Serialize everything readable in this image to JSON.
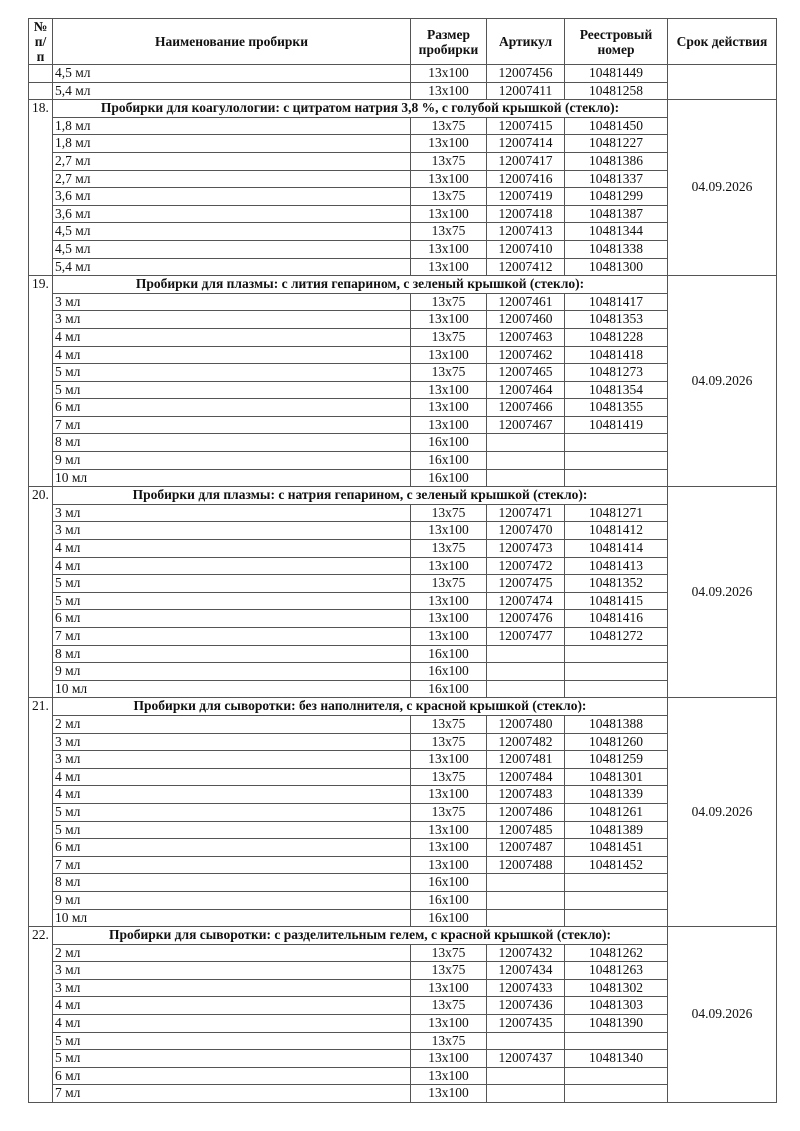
{
  "headers": {
    "num": "№ п/п",
    "name": "Наименование пробирки",
    "size": "Размер пробирки",
    "article": "Артикул",
    "registry": "Реестровый номер",
    "expiry": "Срок действия"
  },
  "continuation": {
    "rows": [
      {
        "name": "4,5 мл",
        "size": "13x100",
        "article": "12007456",
        "registry": "10481449"
      },
      {
        "name": "5,4 мл",
        "size": "13x100",
        "article": "12007411",
        "registry": "10481258"
      }
    ],
    "expiry": ""
  },
  "sections": [
    {
      "num": "18.",
      "title": "Пробирки для коагулологии: с цитратом натрия 3,8 %, с голубой крышкой (стекло):",
      "expiry": "04.09.2026",
      "rows": [
        {
          "name": "1,8 мл",
          "size": "13x75",
          "article": "12007415",
          "registry": "10481450"
        },
        {
          "name": "1,8 мл",
          "size": "13x100",
          "article": "12007414",
          "registry": "10481227"
        },
        {
          "name": "2,7 мл",
          "size": "13x75",
          "article": "12007417",
          "registry": "10481386"
        },
        {
          "name": "2,7 мл",
          "size": "13x100",
          "article": "12007416",
          "registry": "10481337"
        },
        {
          "name": "3,6 мл",
          "size": "13x75",
          "article": "12007419",
          "registry": "10481299"
        },
        {
          "name": "3,6 мл",
          "size": "13x100",
          "article": "12007418",
          "registry": "10481387"
        },
        {
          "name": "4,5 мл",
          "size": "13x75",
          "article": "12007413",
          "registry": "10481344"
        },
        {
          "name": "4,5 мл",
          "size": "13x100",
          "article": "12007410",
          "registry": "10481338"
        },
        {
          "name": "5,4 мл",
          "size": "13x100",
          "article": "12007412",
          "registry": "10481300"
        }
      ]
    },
    {
      "num": "19.",
      "title": "Пробирки для плазмы: с лития гепарином, с зеленый крышкой (стекло):",
      "expiry": "04.09.2026",
      "rows": [
        {
          "name": "3 мл",
          "size": "13x75",
          "article": "12007461",
          "registry": "10481417"
        },
        {
          "name": "3 мл",
          "size": "13x100",
          "article": "12007460",
          "registry": "10481353"
        },
        {
          "name": "4 мл",
          "size": "13x75",
          "article": "12007463",
          "registry": "10481228"
        },
        {
          "name": "4 мл",
          "size": "13x100",
          "article": "12007462",
          "registry": "10481418"
        },
        {
          "name": "5 мл",
          "size": "13x75",
          "article": "12007465",
          "registry": "10481273"
        },
        {
          "name": "5 мл",
          "size": "13x100",
          "article": "12007464",
          "registry": "10481354"
        },
        {
          "name": "6 мл",
          "size": "13x100",
          "article": "12007466",
          "registry": "10481355"
        },
        {
          "name": "7 мл",
          "size": "13x100",
          "article": "12007467",
          "registry": "10481419"
        },
        {
          "name": "8 мл",
          "size": "16x100",
          "article": "",
          "registry": ""
        },
        {
          "name": "9 мл",
          "size": "16x100",
          "article": "",
          "registry": ""
        },
        {
          "name": "10 мл",
          "size": "16x100",
          "article": "",
          "registry": ""
        }
      ]
    },
    {
      "num": "20.",
      "title": "Пробирки для плазмы: с натрия гепарином, с зеленый крышкой (стекло):",
      "expiry": "04.09.2026",
      "rows": [
        {
          "name": "3 мл",
          "size": "13x75",
          "article": "12007471",
          "registry": "10481271"
        },
        {
          "name": "3 мл",
          "size": "13x100",
          "article": "12007470",
          "registry": "10481412"
        },
        {
          "name": "4 мл",
          "size": "13x75",
          "article": "12007473",
          "registry": "10481414"
        },
        {
          "name": "4 мл",
          "size": "13x100",
          "article": "12007472",
          "registry": "10481413"
        },
        {
          "name": "5 мл",
          "size": "13x75",
          "article": "12007475",
          "registry": "10481352"
        },
        {
          "name": "5 мл",
          "size": "13x100",
          "article": "12007474",
          "registry": "10481415"
        },
        {
          "name": "6 мл",
          "size": "13x100",
          "article": "12007476",
          "registry": "10481416"
        },
        {
          "name": "7 мл",
          "size": "13x100",
          "article": "12007477",
          "registry": "10481272"
        },
        {
          "name": "8 мл",
          "size": "16x100",
          "article": "",
          "registry": ""
        },
        {
          "name": "9 мл",
          "size": "16x100",
          "article": "",
          "registry": ""
        },
        {
          "name": "10 мл",
          "size": "16x100",
          "article": "",
          "registry": ""
        }
      ]
    },
    {
      "num": "21.",
      "title": "Пробирки для сыворотки: без наполнителя, с красной крышкой (стекло):",
      "expiry": "04.09.2026",
      "rows": [
        {
          "name": "2 мл",
          "size": "13x75",
          "article": "12007480",
          "registry": "10481388"
        },
        {
          "name": "3 мл",
          "size": "13x75",
          "article": "12007482",
          "registry": "10481260"
        },
        {
          "name": "3 мл",
          "size": "13x100",
          "article": "12007481",
          "registry": "10481259"
        },
        {
          "name": "4 мл",
          "size": "13x75",
          "article": "12007484",
          "registry": "10481301"
        },
        {
          "name": "4 мл",
          "size": "13x100",
          "article": "12007483",
          "registry": "10481339"
        },
        {
          "name": "5 мл",
          "size": "13x75",
          "article": "12007486",
          "registry": "10481261"
        },
        {
          "name": "5 мл",
          "size": "13x100",
          "article": "12007485",
          "registry": "10481389"
        },
        {
          "name": "6 мл",
          "size": "13x100",
          "article": "12007487",
          "registry": "10481451"
        },
        {
          "name": "7 мл",
          "size": "13x100",
          "article": "12007488",
          "registry": "10481452"
        },
        {
          "name": "8 мл",
          "size": "16x100",
          "article": "",
          "registry": ""
        },
        {
          "name": "9 мл",
          "size": "16x100",
          "article": "",
          "registry": ""
        },
        {
          "name": "10 мл",
          "size": "16x100",
          "article": "",
          "registry": ""
        }
      ]
    },
    {
      "num": "22.",
      "title": "Пробирки для сыворотки: с разделительным гелем, с красной крышкой (стекло):",
      "expiry": "04.09.2026",
      "rows": [
        {
          "name": "2 мл",
          "size": "13x75",
          "article": "12007432",
          "registry": "10481262"
        },
        {
          "name": "3 мл",
          "size": "13x75",
          "article": "12007434",
          "registry": "10481263"
        },
        {
          "name": "3 мл",
          "size": "13x100",
          "article": "12007433",
          "registry": "10481302"
        },
        {
          "name": "4 мл",
          "size": "13x75",
          "article": "12007436",
          "registry": "10481303"
        },
        {
          "name": "4 мл",
          "size": "13x100",
          "article": "12007435",
          "registry": "10481390"
        },
        {
          "name": "5 мл",
          "size": "13x75",
          "article": "",
          "registry": ""
        },
        {
          "name": "5 мл",
          "size": "13x100",
          "article": "12007437",
          "registry": "10481340"
        },
        {
          "name": "6 мл",
          "size": "13x100",
          "article": "",
          "registry": ""
        },
        {
          "name": "7 мл",
          "size": "13x100",
          "article": "",
          "registry": ""
        }
      ]
    }
  ]
}
